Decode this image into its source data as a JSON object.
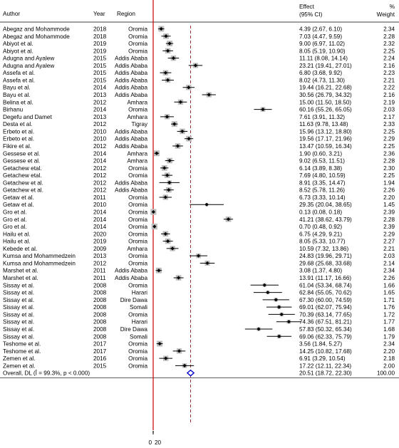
{
  "chart_data": {
    "type": "forest",
    "headers": {
      "author": "Author",
      "year": "Year",
      "region": "Region",
      "effect_line1": "Effect",
      "effect_line2": "(95% CI)",
      "weight_line1": "%",
      "weight_line2": "Weight"
    },
    "studies": [
      {
        "author": "Abegaz and Mohammode",
        "year": "2018",
        "region": "Oromia",
        "effect": 4.39,
        "lo": 2.67,
        "hi": 6.1,
        "ci": "4.39 (2.67, 6.10)",
        "weight": "2.34"
      },
      {
        "author": "Abegaz and Mohammode",
        "year": "2018",
        "region": "Oromia",
        "effect": 7.03,
        "lo": 4.47,
        "hi": 9.59,
        "ci": "7.03 (4.47, 9.59)",
        "weight": "2.28"
      },
      {
        "author": "Abiyot et al.",
        "year": "2019",
        "region": "Oromia",
        "effect": 9.0,
        "lo": 6.97,
        "hi": 11.02,
        "ci": "9.00 (6.97, 11.02)",
        "weight": "2.32"
      },
      {
        "author": "Abiyot et al.",
        "year": "2019",
        "region": "Oromia",
        "effect": 8.05,
        "lo": 5.19,
        "hi": 10.9,
        "ci": "8.05 (5.19, 10.90)",
        "weight": "2.25"
      },
      {
        "author": "Adugna and Ayalew",
        "year": "2015",
        "region": "Addis Ababa",
        "effect": 11.11,
        "lo": 8.08,
        "hi": 14.14,
        "ci": "11.11 (8.08, 14.14)",
        "weight": "2.24"
      },
      {
        "author": "Adugna and Ayalew",
        "year": "2015",
        "region": "Addis Ababa",
        "effect": 23.21,
        "lo": 19.41,
        "hi": 27.01,
        "ci": "23.21 (19.41, 27.01)",
        "weight": "2.16"
      },
      {
        "author": "Assefa et al.",
        "year": "2015",
        "region": "Addis Ababa",
        "effect": 6.8,
        "lo": 3.68,
        "hi": 9.92,
        "ci": "6.80 (3.68, 9.92)",
        "weight": "2.23"
      },
      {
        "author": "Assefa et al.",
        "year": "2015",
        "region": "Addis Ababa",
        "effect": 8.02,
        "lo": 4.73,
        "hi": 11.3,
        "ci": "8.02 (4.73, 11.30)",
        "weight": "2.21"
      },
      {
        "author": "Bayu et al.",
        "year": "2014",
        "region": "Addis Ababa",
        "effect": 19.44,
        "lo": 16.21,
        "hi": 22.68,
        "ci": "19.44 (16.21, 22.68)",
        "weight": "2.22"
      },
      {
        "author": "Bayu et al.",
        "year": "2013",
        "region": "Addis Ababa",
        "effect": 30.56,
        "lo": 26.79,
        "hi": 34.32,
        "ci": "30.56 (26.79, 34.32)",
        "weight": "2.16"
      },
      {
        "author": "Belina et al.",
        "year": "2012",
        "region": "Amhara",
        "effect": 15.0,
        "lo": 11.5,
        "hi": 18.5,
        "ci": "15.00 (11.50, 18.50)",
        "weight": "2.19"
      },
      {
        "author": "Birhanu",
        "year": "2014",
        "region": "Oromia",
        "effect": 60.16,
        "lo": 55.26,
        "hi": 65.05,
        "ci": "60.16 (55.26, 65.05)",
        "weight": "2.03"
      },
      {
        "author": "Degefu and Damet",
        "year": "2013",
        "region": "Amhara",
        "effect": 7.61,
        "lo": 3.91,
        "hi": 11.32,
        "ci": "7.61 (3.91, 11.32)",
        "weight": "2.17"
      },
      {
        "author": "Desta et al.",
        "year": "2012",
        "region": "Tigray",
        "effect": 11.63,
        "lo": 9.78,
        "hi": 13.48,
        "ci": "11.63 (9.78, 13.48)",
        "weight": "2.33"
      },
      {
        "author": "Erbeto et al.",
        "year": "2010",
        "region": "Addis Ababa",
        "effect": 15.96,
        "lo": 13.12,
        "hi": 18.8,
        "ci": "15.96 (13.12, 18.80)",
        "weight": "2.25"
      },
      {
        "author": "Erbeto et al.",
        "year": "2010",
        "region": "Addis Ababa",
        "effect": 19.56,
        "lo": 17.17,
        "hi": 21.96,
        "ci": "19.56 (17.17, 21.96)",
        "weight": "2.29"
      },
      {
        "author": "Fikire et al.",
        "year": "2012",
        "region": "Addis Ababa",
        "effect": 13.47,
        "lo": 10.59,
        "hi": 16.34,
        "ci": "13.47 (10.59, 16.34)",
        "weight": "2.25"
      },
      {
        "author": "Gessese et al.",
        "year": "2014",
        "region": "Amhara",
        "effect": 1.9,
        "lo": 0.6,
        "hi": 3.21,
        "ci": "1.90 (0.60, 3.21)",
        "weight": "2.36"
      },
      {
        "author": "Gessese et al.",
        "year": "2014",
        "region": "Amhara",
        "effect": 9.02,
        "lo": 6.53,
        "hi": 11.51,
        "ci": "9.02 (6.53, 11.51)",
        "weight": "2.28"
      },
      {
        "author": "Getachew etal.",
        "year": "2012",
        "region": "Oromia",
        "effect": 6.14,
        "lo": 3.89,
        "hi": 8.38,
        "ci": "6.14 (3.89, 8.38)",
        "weight": "2.30"
      },
      {
        "author": "Getachew etal.",
        "year": "2012",
        "region": "Oromia",
        "effect": 7.69,
        "lo": 4.8,
        "hi": 10.59,
        "ci": "7.69 (4.80, 10.59)",
        "weight": "2.25"
      },
      {
        "author": "Getachew et al.",
        "year": "2012",
        "region": "Addis Ababa",
        "effect": 8.91,
        "lo": 3.35,
        "hi": 14.47,
        "ci": "8.91 (3.35, 14.47)",
        "weight": "1.94"
      },
      {
        "author": "Getachew et al.",
        "year": "2012",
        "region": "Addis Ababa",
        "effect": 8.52,
        "lo": 5.78,
        "hi": 11.26,
        "ci": "8.52 (5.78, 11.26)",
        "weight": "2.26"
      },
      {
        "author": "Getaw et al.",
        "year": "2011",
        "region": "Oromia",
        "effect": 6.73,
        "lo": 3.33,
        "hi": 10.14,
        "ci": "6.73 (3.33, 10.14)",
        "weight": "2.20"
      },
      {
        "author": "Getaw et al.",
        "year": "2010",
        "region": "Oromia",
        "effect": 29.35,
        "lo": 20.04,
        "hi": 38.65,
        "ci": "29.35 (20.04, 38.65)",
        "weight": "1.45"
      },
      {
        "author": "Gro et al.",
        "year": "2014",
        "region": "Oromia",
        "effect": 0.13,
        "lo": 0.08,
        "hi": 0.18,
        "ci": "0.13 (0.08, 0.18)",
        "weight": "2.39"
      },
      {
        "author": "Gro et al.",
        "year": "2014",
        "region": "Oromia",
        "effect": 41.21,
        "lo": 38.62,
        "hi": 43.79,
        "ci": "41.21 (38.62, 43.79)",
        "weight": "2.28"
      },
      {
        "author": "Gro et al.",
        "year": "2014",
        "region": "Oromia",
        "effect": 0.7,
        "lo": 0.48,
        "hi": 0.92,
        "ci": "0.70 (0.48, 0.92)",
        "weight": "2.39"
      },
      {
        "author": "Hailu et al.",
        "year": "2020",
        "region": "Oromia",
        "effect": 6.75,
        "lo": 4.29,
        "hi": 9.21,
        "ci": "6.75 (4.29, 9.21)",
        "weight": "2.29"
      },
      {
        "author": "Hailu et al.",
        "year": "2019",
        "region": "Oromia",
        "effect": 8.05,
        "lo": 5.33,
        "hi": 10.77,
        "ci": "8.05 (5.33, 10.77)",
        "weight": "2.27"
      },
      {
        "author": "Kebede et al.",
        "year": "2009",
        "region": "Amhara",
        "effect": 10.59,
        "lo": 7.32,
        "hi": 13.86,
        "ci": "10.59 (7.32, 13.86)",
        "weight": "2.21"
      },
      {
        "author": "Kumsa and Mohammedzein",
        "year": "2013",
        "region": "Oromia",
        "effect": 24.83,
        "lo": 19.96,
        "hi": 29.71,
        "ci": "24.83 (19.96, 29.71)",
        "weight": "2.03"
      },
      {
        "author": "Kumsa and Mohammedzein",
        "year": "2012",
        "region": "Oromia",
        "effect": 29.68,
        "lo": 25.68,
        "hi": 33.68,
        "ci": "29.68 (25.68, 33.68)",
        "weight": "2.14"
      },
      {
        "author": "Marshet et al.",
        "year": "2011",
        "region": "Addis Ababa",
        "effect": 3.08,
        "lo": 1.37,
        "hi": 4.8,
        "ci": "3.08 (1.37, 4.80)",
        "weight": "2.34"
      },
      {
        "author": "Marshet et al.",
        "year": "2011",
        "region": "Addis Ababa",
        "effect": 13.91,
        "lo": 11.17,
        "hi": 16.66,
        "ci": "13.91 (11.17, 16.66)",
        "weight": "2.26"
      },
      {
        "author": "Sissay et al.",
        "year": "2008",
        "region": "Oromia",
        "effect": 61.04,
        "lo": 53.34,
        "hi": 68.74,
        "ci": "61.04 (53.34, 68.74)",
        "weight": "1.66"
      },
      {
        "author": "Sissay et al.",
        "year": "2008",
        "region": "Harari",
        "effect": 62.84,
        "lo": 55.05,
        "hi": 70.62,
        "ci": "62.84 (55.05, 70.62)",
        "weight": "1.65"
      },
      {
        "author": "Sissay et al.",
        "year": "2008",
        "region": "Dire Dawa",
        "effect": 67.3,
        "lo": 60.0,
        "hi": 74.59,
        "ci": "67.30 (60.00, 74.59)",
        "weight": "1.71"
      },
      {
        "author": "Sissay et al.",
        "year": "2008",
        "region": "Somali",
        "effect": 69.01,
        "lo": 62.07,
        "hi": 75.94,
        "ci": "69.01 (62.07, 75.94)",
        "weight": "1.76"
      },
      {
        "author": "Sissay et al.",
        "year": "2008",
        "region": "Oromia",
        "effect": 70.39,
        "lo": 63.14,
        "hi": 77.65,
        "ci": "70.39 (63.14, 77.65)",
        "weight": "1.72"
      },
      {
        "author": "Sissay et al.",
        "year": "2008",
        "region": "Harari",
        "effect": 74.36,
        "lo": 67.51,
        "hi": 81.21,
        "ci": "74.36 (67.51, 81.21)",
        "weight": "1.77"
      },
      {
        "author": "Sissay et al.",
        "year": "2008",
        "region": "Dire Dawa",
        "effect": 57.83,
        "lo": 50.32,
        "hi": 65.34,
        "ci": "57.83 (50.32, 65.34)",
        "weight": "1.68"
      },
      {
        "author": "Sissay et al.",
        "year": "2008",
        "region": "Somali",
        "effect": 69.06,
        "lo": 62.33,
        "hi": 75.79,
        "ci": "69.06 (62.33, 75.79)",
        "weight": "1.79"
      },
      {
        "author": "Teshome et al.",
        "year": "2017",
        "region": "Oromia",
        "effect": 3.56,
        "lo": 1.84,
        "hi": 5.27,
        "ci": "3.56 (1.84, 5.27)",
        "weight": "2.34"
      },
      {
        "author": "Teshome et al.",
        "year": "2017",
        "region": "Oromia",
        "effect": 14.25,
        "lo": 10.82,
        "hi": 17.68,
        "ci": "14.25 (10.82, 17.68)",
        "weight": "2.20"
      },
      {
        "author": "Zemen et al.",
        "year": "2016",
        "region": "Oromia",
        "effect": 6.91,
        "lo": 3.29,
        "hi": 10.54,
        "ci": "6.91 (3.29, 10.54)",
        "weight": "2.18"
      },
      {
        "author": "Zemen et al.",
        "year": "2015",
        "region": "Oromia",
        "effect": 17.22,
        "lo": 12.11,
        "hi": 22.34,
        "ci": "17.22 (12.11, 22.34)",
        "weight": "2.00"
      }
    ],
    "overall": {
      "label": "Overall, DL (Î = 99.3%, p < 0.000)",
      "effect": 20.51,
      "lo": 18.72,
      "hi": 22.3,
      "ci": "20.51 (18.72, 22.30)",
      "weight": "100.00"
    },
    "x_tick_labels": [
      "0",
      "20"
    ],
    "null_line": 0,
    "overall_line": 20.51,
    "colors": {
      "null_line": "#cc0000",
      "overall_line": "#8b1a1a",
      "overall_diamond": "#0000cc",
      "weight_box": "#bdbdbd"
    }
  }
}
